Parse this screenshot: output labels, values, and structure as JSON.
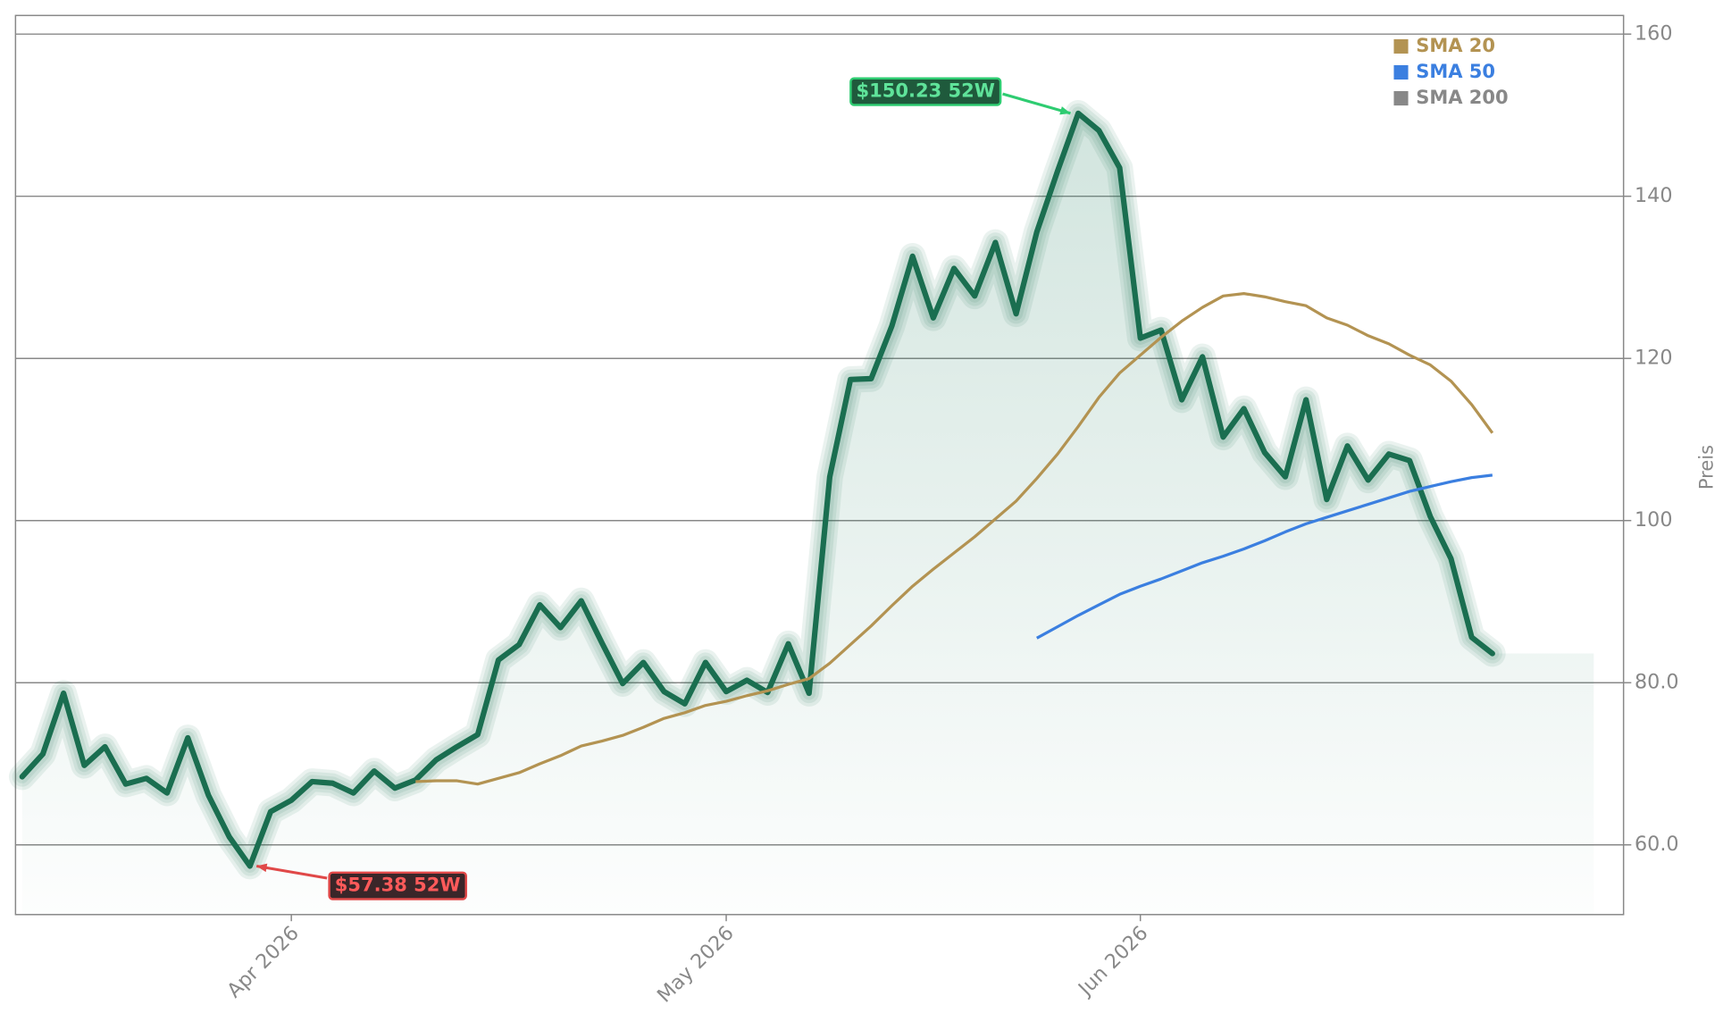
{
  "chart_data": {
    "type": "line",
    "ylabel": "Preis",
    "categories": [
      null,
      null,
      null,
      null,
      null,
      null,
      null,
      null,
      null,
      null,
      null,
      null,
      null,
      "Apr 2026",
      null,
      null,
      null,
      null,
      null,
      null,
      null,
      null,
      null,
      null,
      null,
      null,
      null,
      null,
      null,
      null,
      null,
      null,
      null,
      null,
      "May 2026",
      null,
      null,
      null,
      null,
      null,
      null,
      null,
      null,
      null,
      null,
      null,
      null,
      null,
      null,
      null,
      null,
      null,
      null,
      null,
      "Jun 2026",
      null,
      null,
      null,
      null,
      null,
      null,
      null,
      null,
      null,
      null,
      null,
      null,
      null,
      null,
      null,
      null,
      null
    ],
    "series": [
      {
        "color": "#1a6e50",
        "values": [
          68.4,
          71.2,
          78.7,
          69.8,
          72.1,
          67.5,
          68.2,
          66.4,
          73.2,
          66.1,
          61.0,
          57.38,
          64.1,
          65.5,
          67.8,
          67.6,
          66.4,
          69.1,
          67.0,
          68.0,
          70.5,
          72.1,
          73.6,
          82.8,
          84.7,
          89.6,
          86.8,
          90.1,
          84.9,
          79.9,
          82.5,
          78.9,
          77.4,
          82.5,
          78.9,
          80.3,
          78.8,
          84.8,
          78.7,
          105.4,
          117.4,
          117.5,
          124.0,
          132.6,
          125.0,
          131.1,
          127.7,
          134.3,
          125.5,
          135.6,
          143.1,
          150.23,
          148.1,
          143.5,
          122.5,
          123.5,
          114.9,
          120.2,
          110.3,
          113.8,
          108.4,
          105.4,
          114.9,
          102.6,
          109.2,
          105.0,
          108.2,
          107.4,
          100.5,
          95.3,
          85.6,
          83.6
        ]
      },
      {
        "name": "SMA 20",
        "color": "#b39352",
        "values": [
          null,
          null,
          null,
          null,
          null,
          null,
          null,
          null,
          null,
          null,
          null,
          null,
          null,
          null,
          null,
          null,
          null,
          null,
          null,
          67.8,
          67.9,
          67.9,
          67.5,
          68.2,
          68.9,
          70.0,
          71.0,
          72.2,
          72.8,
          73.5,
          74.5,
          75.6,
          76.3,
          77.2,
          77.7,
          78.4,
          79.0,
          79.8,
          80.5,
          82.4,
          84.7,
          87.0,
          89.5,
          91.9,
          94.0,
          96.0,
          98.0,
          100.2,
          102.4,
          105.2,
          108.2,
          111.6,
          115.2,
          118.2,
          120.4,
          122.6,
          124.6,
          126.3,
          127.7,
          128.0,
          127.6,
          127.0,
          126.5,
          125.0,
          124.1,
          122.8,
          121.8,
          120.4,
          119.2,
          117.2,
          114.3,
          110.8
        ]
      },
      {
        "name": "SMA 50",
        "color": "#3b7fe0",
        "values": [
          null,
          null,
          null,
          null,
          null,
          null,
          null,
          null,
          null,
          null,
          null,
          null,
          null,
          null,
          null,
          null,
          null,
          null,
          null,
          null,
          null,
          null,
          null,
          null,
          null,
          null,
          null,
          null,
          null,
          null,
          null,
          null,
          null,
          null,
          null,
          null,
          null,
          null,
          null,
          null,
          null,
          null,
          null,
          null,
          null,
          null,
          null,
          null,
          null,
          85.5,
          86.9,
          88.3,
          89.6,
          90.9,
          91.9,
          92.8,
          93.8,
          94.8,
          95.6,
          96.5,
          97.5,
          98.6,
          99.6,
          100.4,
          101.2,
          102.0,
          102.8,
          103.6,
          104.2,
          104.8,
          105.3,
          105.6
        ]
      },
      {
        "name": "SMA 200",
        "color": "#888888",
        "values": [
          null,
          null,
          null,
          null,
          null,
          null,
          null,
          null,
          null,
          null,
          null,
          null,
          null,
          null,
          null,
          null,
          null,
          null,
          null,
          null,
          null,
          null,
          null,
          null,
          null,
          null,
          null,
          null,
          null,
          null,
          null,
          null,
          null,
          null,
          null,
          null,
          null,
          null,
          null,
          null,
          null,
          null,
          null,
          null,
          null,
          null,
          null,
          null,
          null,
          null,
          null,
          null,
          null,
          null,
          null,
          null,
          null,
          null,
          null,
          null,
          null,
          null,
          null,
          null,
          null,
          null,
          null,
          null,
          null,
          null,
          null,
          null
        ]
      }
    ],
    "annotations": [
      "$150.23 52W",
      "$57.38 52W"
    ],
    "ylim": [
      51.4,
      162.3
    ],
    "yticks": [
      {
        "value": 60,
        "label": "60.0"
      },
      {
        "value": 80,
        "label": "80.0"
      },
      100,
      120,
      140,
      160
    ],
    "grid": true,
    "legend": "upper right"
  }
}
